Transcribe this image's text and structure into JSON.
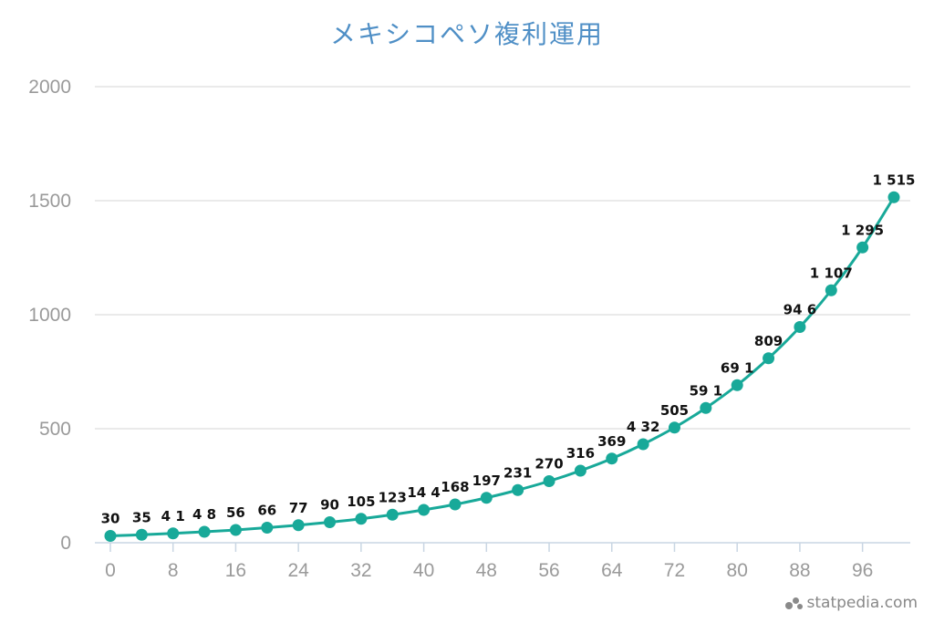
{
  "title": "メキシコペソ複利運用",
  "brand": "statpedia.com",
  "chart_data": {
    "type": "line",
    "title": "メキシコペソ複利運用",
    "xlabel": "",
    "ylabel": "",
    "x": [
      0,
      4,
      8,
      12,
      16,
      20,
      24,
      28,
      32,
      36,
      40,
      44,
      48,
      52,
      56,
      60,
      64,
      68,
      72,
      76,
      80,
      84,
      88,
      92,
      96,
      100
    ],
    "series": [
      {
        "values": [
          30,
          35,
          41,
          48,
          56,
          66,
          77,
          90,
          105,
          123,
          144,
          168,
          197,
          231,
          270,
          316,
          369,
          432,
          505,
          591,
          691,
          809,
          946,
          1107,
          1295,
          1515
        ],
        "labels": [
          "30",
          "35",
          "4 1",
          "4 8",
          "56",
          "66",
          "77",
          "90",
          "105",
          "123",
          "14 4",
          "168",
          "197",
          "231",
          "270",
          "316",
          "369",
          "4 32",
          "505",
          "59 1",
          "69 1",
          "809",
          "94 6",
          "1 107",
          "1 295",
          "1 515"
        ],
        "color": "#18a999"
      }
    ],
    "xticks": [
      "0",
      "8",
      "16",
      "24",
      "32",
      "40",
      "48",
      "56",
      "64",
      "72",
      "80",
      "88",
      "96"
    ],
    "yticks": [
      "0",
      "500",
      "1000",
      "1500",
      "2000"
    ],
    "xlim": [
      0,
      100
    ],
    "ylim": [
      0,
      2000
    ],
    "grid": "horizontal",
    "colors": {
      "line": "#18a999",
      "grid": "#d6d6d6",
      "axis": "#c9d6e3",
      "title": "#4f8fc6"
    }
  }
}
